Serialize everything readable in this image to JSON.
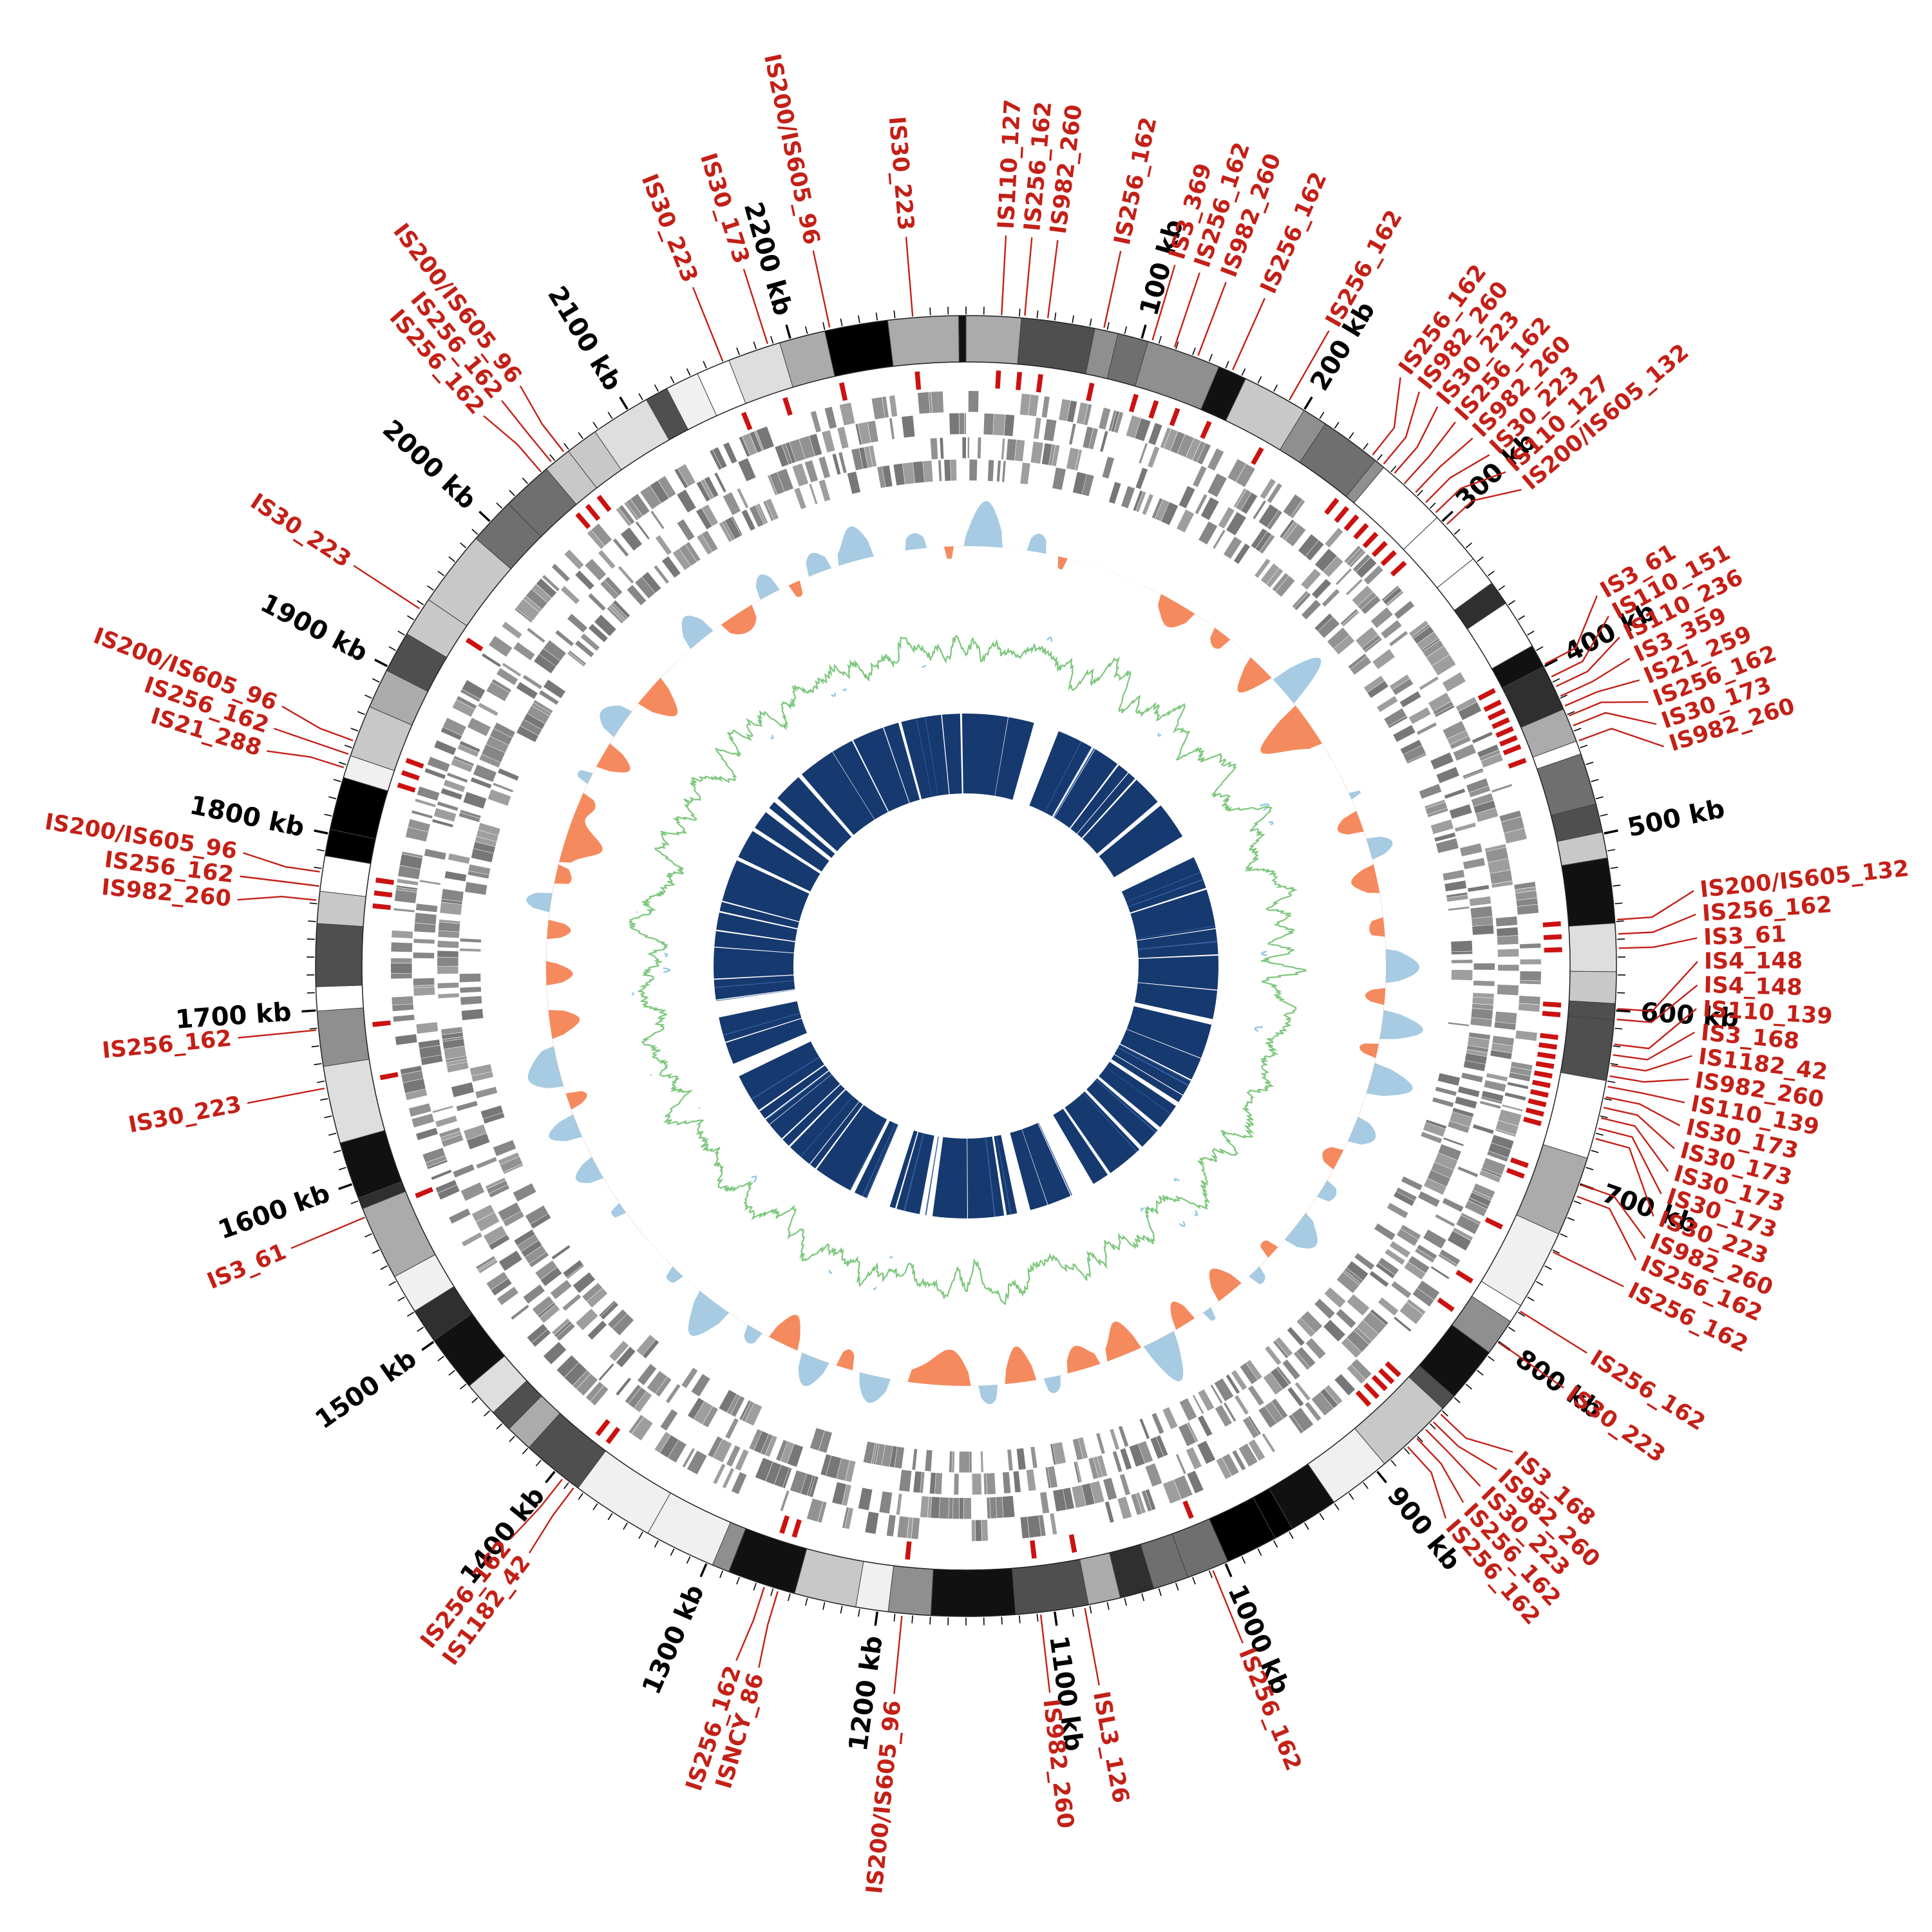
{
  "page": {
    "background": "#ffffff"
  },
  "chart_data": {
    "type": "circos",
    "description": "Circular bacterial genome map with insertion-sequence (IS) element annotations, grayscale ideogram ring, gene tile tracks, GC-skew histogram (blue/orange), GC line track (green/blue) and inner alignment ring (navy).",
    "genome_length_kb": 2300,
    "ticks": {
      "major_interval_kb": 100,
      "minor_interval_kb": 10,
      "unit": "kb",
      "labels": [
        "100 kb",
        "200 kb",
        "300 kb",
        "400 kb",
        "500 kb",
        "600 kb",
        "700 kb",
        "800 kb",
        "900 kb",
        "1000 kb",
        "1100 kb",
        "1200 kb",
        "1300 kb",
        "1400 kb",
        "1500 kb",
        "1600 kb",
        "1700 kb",
        "1800 kb",
        "1900 kb",
        "2000 kb",
        "2100 kb",
        "2200 kb"
      ]
    },
    "colors": {
      "tick_label": "#000000",
      "tick_mark": "#000000",
      "is_label": "#c32017",
      "is_leader_line": "#c32017",
      "is_mark": "#cc1111",
      "ideogram_palette": [
        "#ffffff",
        "#f0f0f0",
        "#dedede",
        "#c8c8c8",
        "#ababab",
        "#8f8f8f",
        "#6f6f6f",
        "#4f4f4f",
        "#2f2f2f",
        "#111111",
        "#000000"
      ],
      "ideogram_outline": "#444444",
      "gene_tile_palette": [
        "#777777",
        "#868686",
        "#929292",
        "#9e9e9e"
      ],
      "skew_positive": "#a6cbe3",
      "skew_negative": "#f58a5e",
      "gc_line_green": "#7cc67c",
      "gc_line_blue": "#96c8e8",
      "inner_ring": "#16396f",
      "inner_ring_sliver": "#35609f"
    },
    "tracks": [
      {
        "name": "tick-ring",
        "r": 1012,
        "minor_len": 12,
        "major_len": 22,
        "label_r": 1050
      },
      {
        "name": "ideogram",
        "r_in": 938,
        "r_out": 1010
      },
      {
        "name": "is-marks",
        "r_in": 898,
        "r_out": 926,
        "mark_width_kb": 3
      },
      {
        "name": "genes-forward",
        "r_in": 826,
        "r_out": 893
      },
      {
        "name": "genes-reverse",
        "r_in": 754,
        "r_out": 821
      },
      {
        "name": "gc-skew",
        "baseline_r": 652,
        "amplitude": 95
      },
      {
        "name": "gc-line",
        "baseline_r": 494,
        "amplitude": 52
      },
      {
        "name": "inner-ring",
        "r_in": 268,
        "r_out": 392
      }
    ],
    "label_layout": {
      "line_start_r": 1014,
      "line_elbow_r": 1068,
      "line_end_r": 1136,
      "text_r": 1146,
      "min_gap_deg": 1.85
    },
    "render_seed": 42,
    "is_elements": [
      {
        "label": "IS110_127",
        "kb": 20
      },
      {
        "label": "IS256_162",
        "kb": 33
      },
      {
        "label": "IS982_260",
        "kb": 46
      },
      {
        "label": "IS256_162",
        "kb": 78
      },
      {
        "label": "IS3_369",
        "kb": 106
      },
      {
        "label": "IS256_162",
        "kb": 119
      },
      {
        "label": "IS982_260",
        "kb": 133
      },
      {
        "label": "IS256_162",
        "kb": 154
      },
      {
        "label": "IS256_162",
        "kb": 190
      },
      {
        "label": "IS256_162",
        "kb": 246
      },
      {
        "label": "IS982_260",
        "kb": 254
      },
      {
        "label": "IS30_223",
        "kb": 262
      },
      {
        "label": "IS256_162",
        "kb": 270
      },
      {
        "label": "IS982_260",
        "kb": 278
      },
      {
        "label": "IS30_223",
        "kb": 286
      },
      {
        "label": "IS110_127",
        "kb": 294
      },
      {
        "label": "IS200/IS605_132",
        "kb": 303
      },
      {
        "label": "IS3_61",
        "kb": 399
      },
      {
        "label": "IS110_151",
        "kb": 407
      },
      {
        "label": "IS110_236",
        "kb": 413
      },
      {
        "label": "IS3_359",
        "kb": 419
      },
      {
        "label": "IS21_259",
        "kb": 425
      },
      {
        "label": "IS256_162",
        "kb": 431
      },
      {
        "label": "IS30_173",
        "kb": 437
      },
      {
        "label": "IS982_260",
        "kb": 446
      },
      {
        "label": "IS200/IS605_132",
        "kb": 549
      },
      {
        "label": "IS256_162",
        "kb": 557
      },
      {
        "label": "IS3_61",
        "kb": 565
      },
      {
        "label": "IS4_148",
        "kb": 599
      },
      {
        "label": "IS4_148",
        "kb": 605
      },
      {
        "label": "IS110_139",
        "kb": 619
      },
      {
        "label": "IS3_168",
        "kb": 625
      },
      {
        "label": "IS1182_42",
        "kb": 631
      },
      {
        "label": "IS982_260",
        "kb": 637
      },
      {
        "label": "IS110_139",
        "kb": 643
      },
      {
        "label": "IS30_173",
        "kb": 649
      },
      {
        "label": "IS30_173",
        "kb": 655
      },
      {
        "label": "IS30_173",
        "kb": 661
      },
      {
        "label": "IS30_173",
        "kb": 667
      },
      {
        "label": "IS30_223",
        "kb": 673
      },
      {
        "label": "IS982_260",
        "kb": 700
      },
      {
        "label": "IS256_162",
        "kb": 707
      },
      {
        "label": "IS256_162",
        "kb": 741
      },
      {
        "label": "IS256_162",
        "kb": 779
      },
      {
        "label": "IS30_223",
        "kb": 800
      },
      {
        "label": "IS3_168",
        "kb": 852
      },
      {
        "label": "IS982_260",
        "kb": 858
      },
      {
        "label": "IS30_223",
        "kb": 864
      },
      {
        "label": "IS256_162",
        "kb": 871
      },
      {
        "label": "IS256_162",
        "kb": 878
      },
      {
        "label": "IS256_162",
        "kb": 1008
      },
      {
        "label": "ISL3_126",
        "kb": 1083
      },
      {
        "label": "IS982_260",
        "kb": 1108
      },
      {
        "label": "IS200/IS605_96",
        "kb": 1186
      },
      {
        "label": "ISNCY_86",
        "kb": 1257
      },
      {
        "label": "IS256_162",
        "kb": 1265
      },
      {
        "label": "IS1182_42",
        "kb": 1386
      },
      {
        "label": "IS256_162",
        "kb": 1394
      },
      {
        "label": "IS3_61",
        "kb": 1580
      },
      {
        "label": "IS30_223",
        "kb": 1656
      },
      {
        "label": "IS256_162",
        "kb": 1689
      },
      {
        "label": "IS982_260",
        "kb": 1762
      },
      {
        "label": "IS256_162",
        "kb": 1770
      },
      {
        "label": "IS200/IS605_96",
        "kb": 1778
      },
      {
        "label": "IS21_288",
        "kb": 1838
      },
      {
        "label": "IS256_162",
        "kb": 1846
      },
      {
        "label": "IS200/IS605_96",
        "kb": 1854
      },
      {
        "label": "IS30_223",
        "kb": 1937
      },
      {
        "label": "IS256_162",
        "kb": 2040
      },
      {
        "label": "IS256_162",
        "kb": 2048
      },
      {
        "label": "IS200/IS605_96",
        "kb": 2057
      },
      {
        "label": "IS30_223",
        "kb": 2160
      },
      {
        "label": "IS30_173",
        "kb": 2187
      },
      {
        "label": "IS200/IS605_96",
        "kb": 2223
      },
      {
        "label": "IS30_223",
        "kb": 2270
      }
    ]
  }
}
